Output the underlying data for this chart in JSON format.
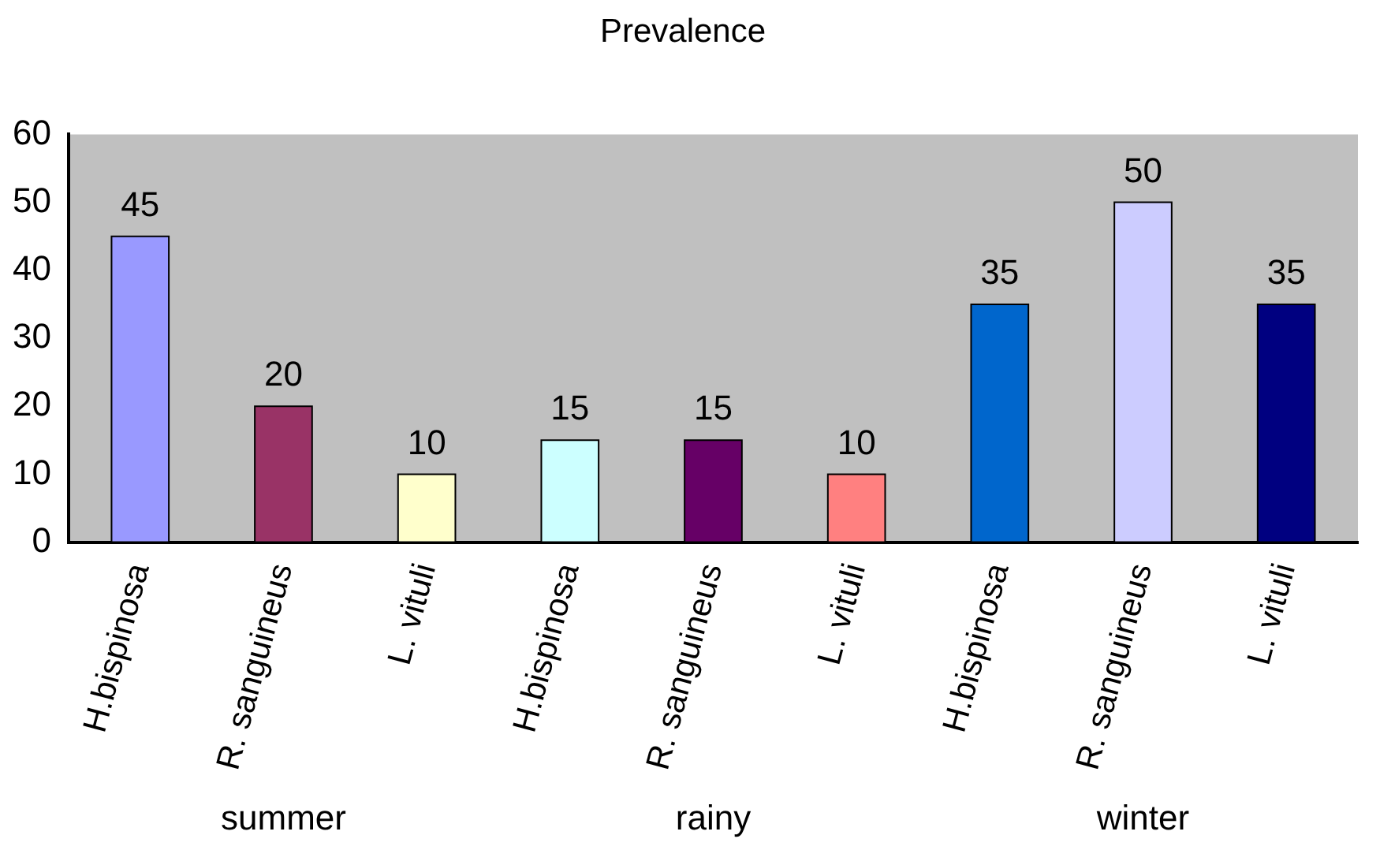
{
  "chart_data": {
    "type": "bar",
    "title": "Prevalence",
    "categories": [
      "H.bispinosa",
      "R. sanguineus",
      "L. vituli",
      "H.bispinosa",
      "R. sanguineus",
      "L. vituli",
      "H.bispinosa",
      "R. sanguineus",
      "L. vituli"
    ],
    "values": [
      45,
      20,
      10,
      15,
      15,
      10,
      35,
      50,
      35
    ],
    "colors": [
      "#9999ff",
      "#993366",
      "#ffffcc",
      "#ccffff",
      "#660066",
      "#ff8080",
      "#0066cc",
      "#ccccff",
      "#000080"
    ],
    "ylim": [
      0,
      60
    ],
    "yticks": [
      0,
      10,
      20,
      30,
      40,
      50,
      60
    ],
    "grid": false,
    "legend": false,
    "data_labels": true,
    "annotations": [
      "summer",
      "rainy",
      "winter"
    ]
  }
}
